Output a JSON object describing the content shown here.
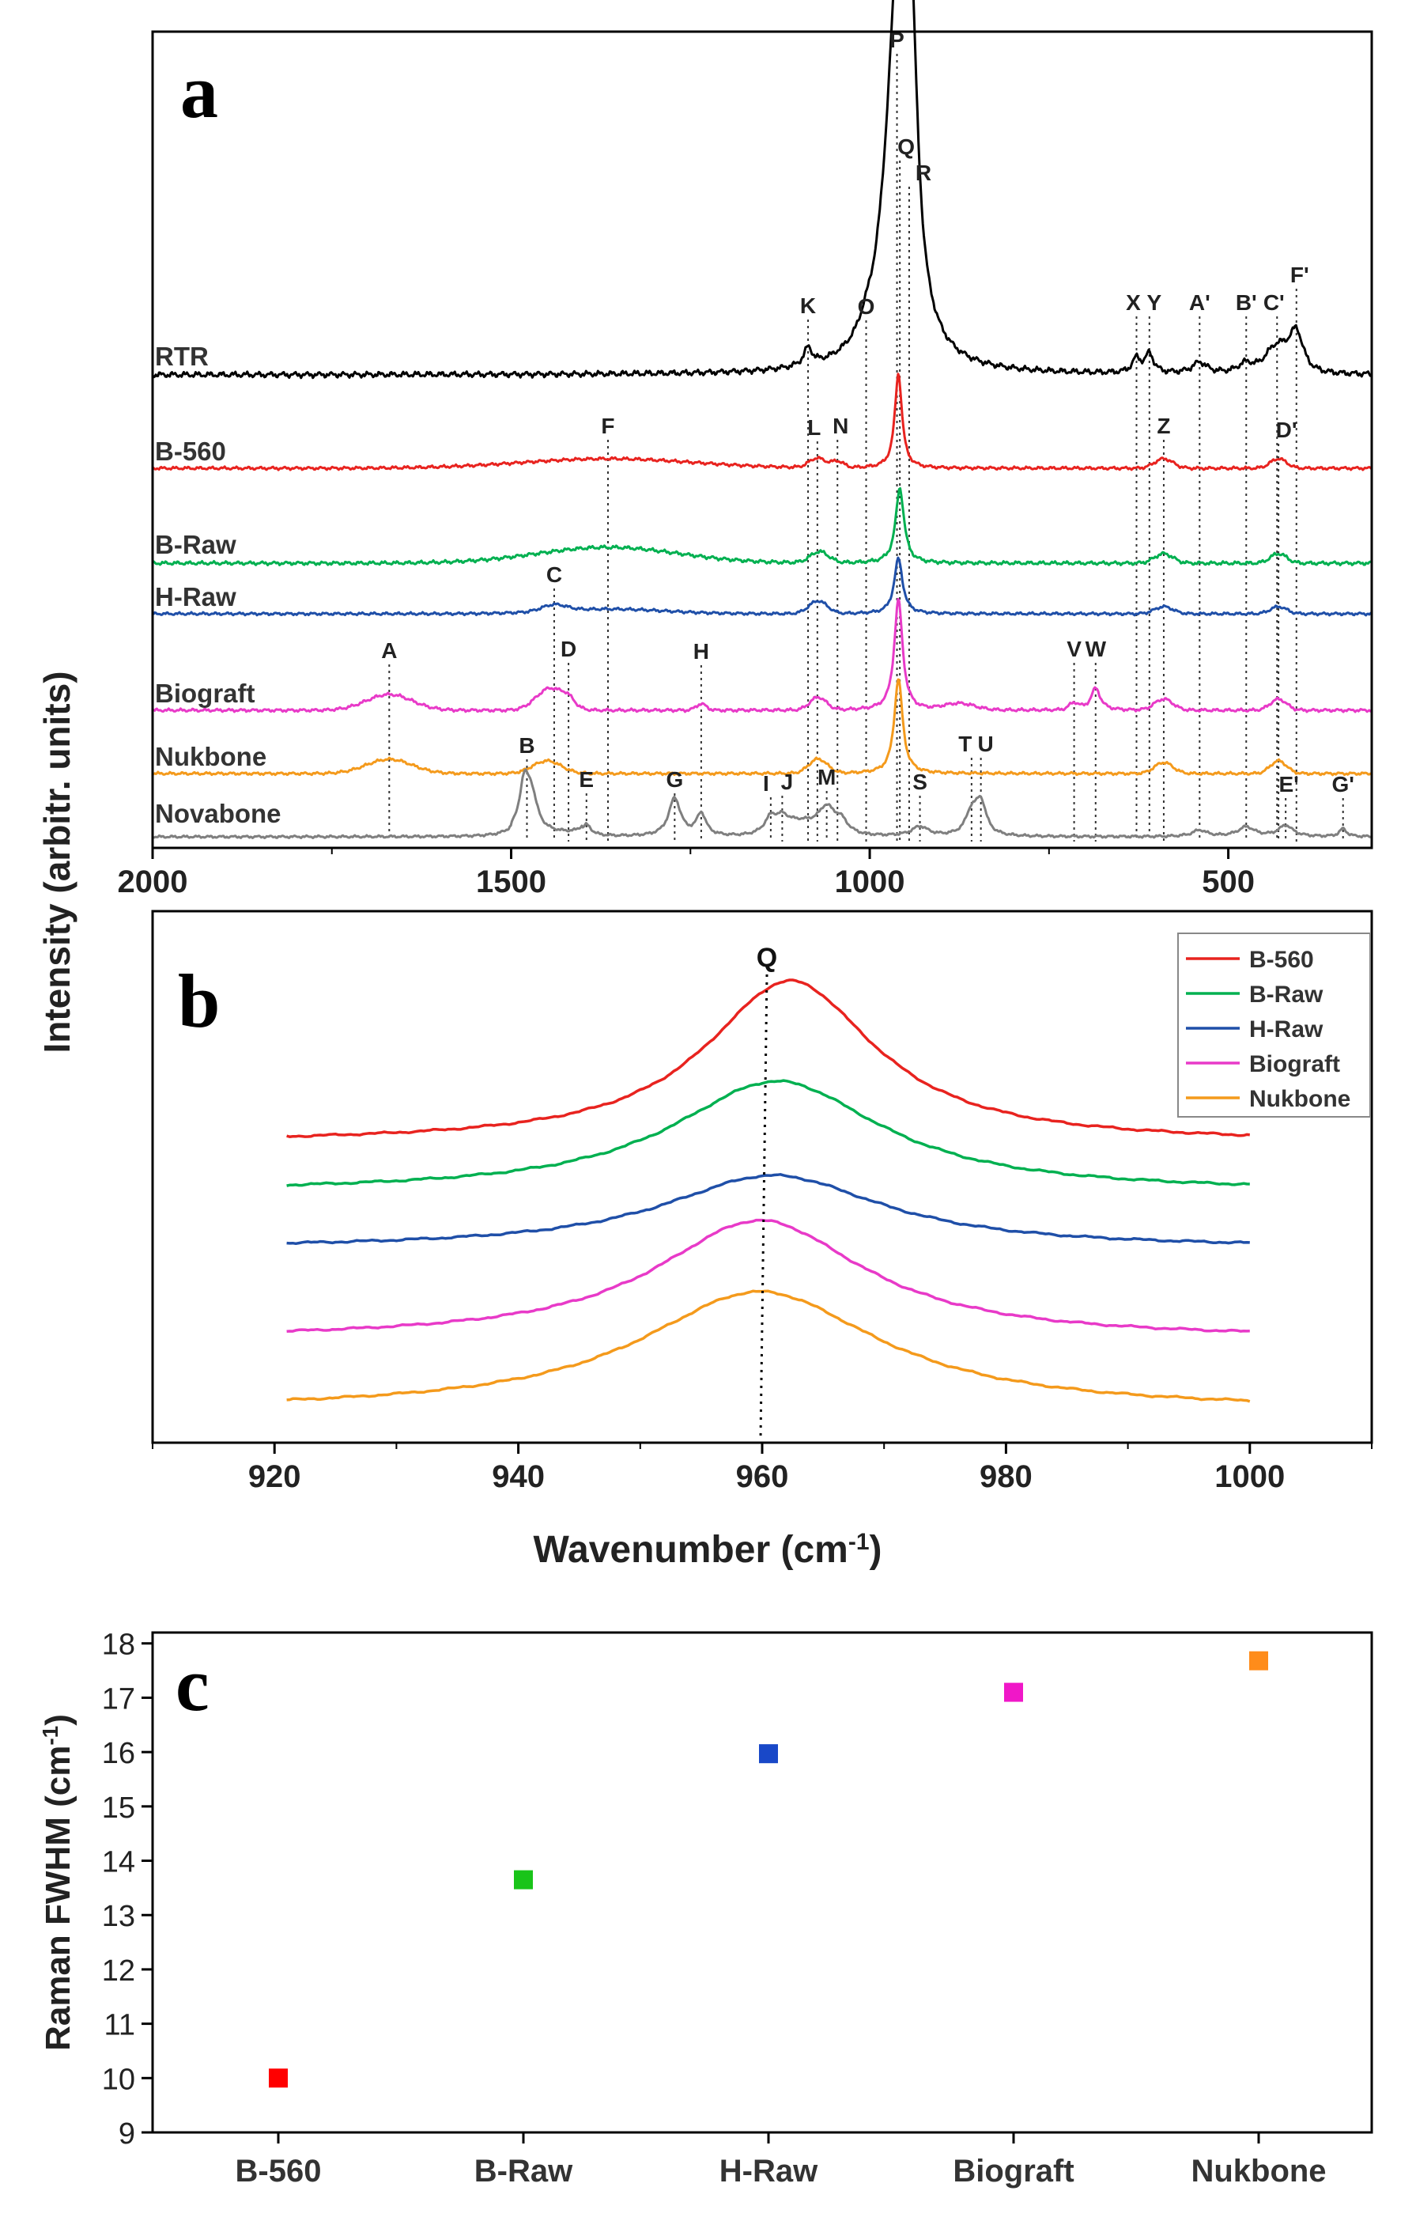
{
  "figure": {
    "shared_ylabel": "Intensity (arbitr. units)",
    "shared_xlabel_main": "Wavenumber (cm",
    "shared_xlabel_sup": "-1",
    "shared_xlabel_end": ")"
  },
  "chart_data": [
    {
      "type": "line",
      "panel_label": "a",
      "xlim": [
        2000,
        300
      ],
      "xticks": [
        2000,
        1500,
        1000,
        500
      ],
      "ylabel": "Intensity (arbitr. units)",
      "series": [
        {
          "name": "RTR",
          "color": "#000000"
        },
        {
          "name": "B-560",
          "color": "#e8231f"
        },
        {
          "name": "B-Raw",
          "color": "#00b050"
        },
        {
          "name": "H-Raw",
          "color": "#1f4fa8"
        },
        {
          "name": "Biograft",
          "color": "#e83ac8"
        },
        {
          "name": "Nukbone",
          "color": "#f49a1c"
        },
        {
          "name": "Novabone",
          "color": "#7f7f7f"
        }
      ],
      "peak_labels": [
        {
          "label": "A",
          "x": 1670
        },
        {
          "label": "B",
          "x": 1478
        },
        {
          "label": "C",
          "x": 1440
        },
        {
          "label": "D",
          "x": 1420
        },
        {
          "label": "E",
          "x": 1395
        },
        {
          "label": "F",
          "x": 1365
        },
        {
          "label": "G",
          "x": 1272
        },
        {
          "label": "H",
          "x": 1235
        },
        {
          "label": "I",
          "x": 1138
        },
        {
          "label": "J",
          "x": 1122
        },
        {
          "label": "K",
          "x": 1086
        },
        {
          "label": "L",
          "x": 1073
        },
        {
          "label": "M",
          "x": 1060
        },
        {
          "label": "N",
          "x": 1045
        },
        {
          "label": "O",
          "x": 1005
        },
        {
          "label": "P",
          "x": 962
        },
        {
          "label": "Q",
          "x": 958
        },
        {
          "label": "R",
          "x": 945
        },
        {
          "label": "S",
          "x": 930
        },
        {
          "label": "T",
          "x": 858
        },
        {
          "label": "U",
          "x": 845
        },
        {
          "label": "V",
          "x": 715
        },
        {
          "label": "W",
          "x": 685
        },
        {
          "label": "X",
          "x": 628
        },
        {
          "label": "Y",
          "x": 610
        },
        {
          "label": "Z",
          "x": 590
        },
        {
          "label": "A'",
          "x": 540
        },
        {
          "label": "B'",
          "x": 475
        },
        {
          "label": "C'",
          "x": 432
        },
        {
          "label": "D'",
          "x": 430
        },
        {
          "label": "E'",
          "x": 420
        },
        {
          "label": "F'",
          "x": 405
        },
        {
          "label": "G'",
          "x": 340
        }
      ]
    },
    {
      "type": "line",
      "panel_label": "b",
      "xlim": [
        910,
        1010
      ],
      "xticks": [
        920,
        940,
        960,
        980,
        1000
      ],
      "xlabel": "Wavenumber (cm-1)",
      "reference_line": {
        "label": "Q",
        "x": 960
      },
      "series": [
        {
          "name": "B-560",
          "color": "#e8231f",
          "peak_x": 962.3
        },
        {
          "name": "B-Raw",
          "color": "#00b050",
          "peak_x": 961.2
        },
        {
          "name": "H-Raw",
          "color": "#1f4fa8",
          "peak_x": 960.9
        },
        {
          "name": "Biograft",
          "color": "#e83ac8",
          "peak_x": 959.8
        },
        {
          "name": "Nukbone",
          "color": "#f49a1c",
          "peak_x": 959.8
        }
      ],
      "legend": [
        "B-560",
        "B-Raw",
        "H-Raw",
        "Biograft",
        "Nukbone"
      ],
      "legend_position": "top-right"
    },
    {
      "type": "scatter",
      "panel_label": "c",
      "categories": [
        "B-560",
        "B-Raw",
        "H-Raw",
        "Biograft",
        "Nukbone"
      ],
      "values": [
        10.0,
        13.65,
        15.97,
        17.1,
        17.68
      ],
      "colors": [
        "#ff0000",
        "#19c419",
        "#1948c8",
        "#f017c8",
        "#ff8c1a"
      ],
      "ylim": [
        9,
        18.2
      ],
      "yticks": [
        9,
        10,
        11,
        12,
        13,
        14,
        15,
        16,
        17,
        18
      ],
      "ylabel_main": "Raman FWHM (cm",
      "ylabel_sup": "-1",
      "ylabel_end": ")"
    }
  ]
}
